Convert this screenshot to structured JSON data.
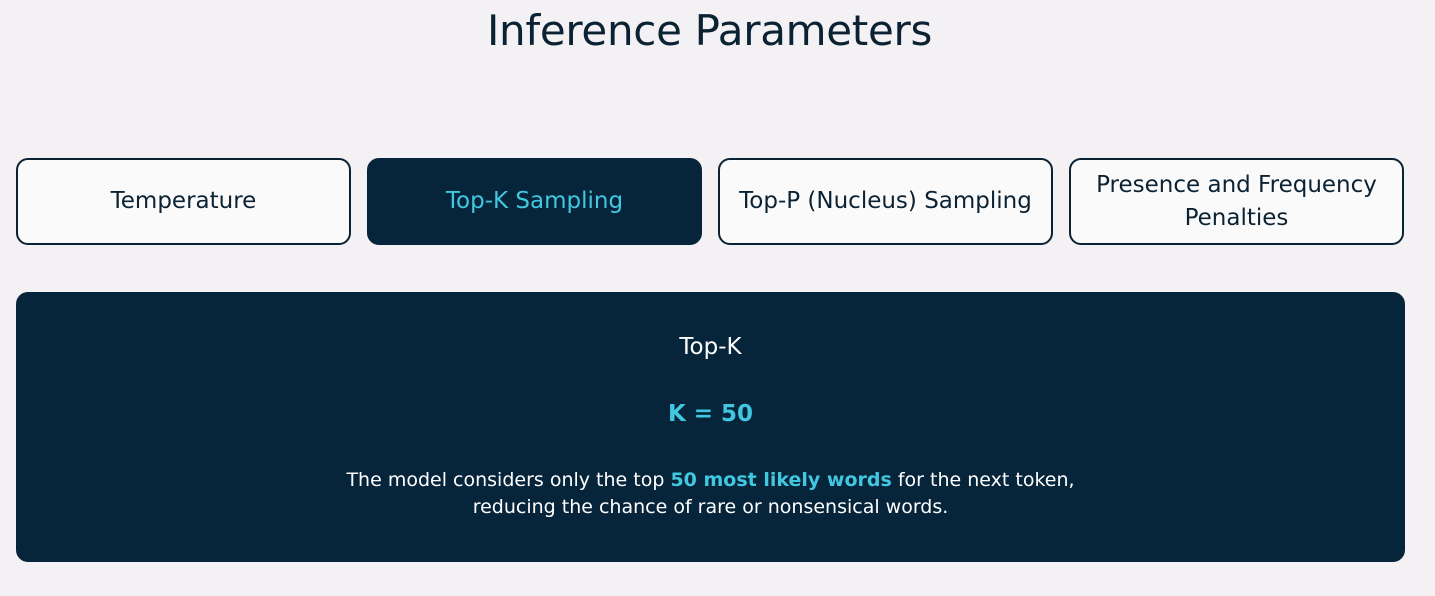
{
  "title": "Inference Parameters",
  "tabs": [
    {
      "label": "Temperature",
      "active": false
    },
    {
      "label": "Top-K Sampling",
      "active": true
    },
    {
      "label": "Top-P (Nucleus) Sampling",
      "active": false
    },
    {
      "label": "Presence and Frequency Penalties",
      "active": false
    }
  ],
  "panel": {
    "heading": "Top-K",
    "value": "K = 50",
    "description": {
      "line1_before": "The model considers only the top ",
      "line1_highlight": "50 most likely words",
      "line1_after": " for the next token,",
      "line2": "reducing the chance of rare or nonsensical words."
    }
  },
  "colors": {
    "background": "#f3f1f4",
    "navy": "#06243a",
    "accent": "#41c8e0"
  }
}
